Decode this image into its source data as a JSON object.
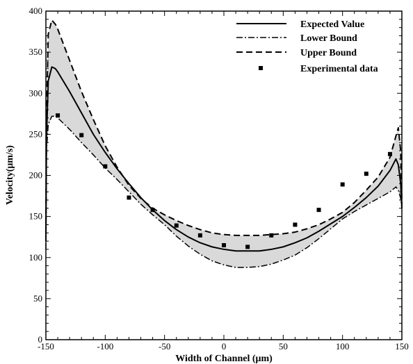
{
  "chart_data": {
    "type": "line",
    "title": "",
    "xlabel": "Width of Channel (μm)",
    "ylabel": "Velocity(μm/s)",
    "xlim": [
      -150,
      150
    ],
    "ylim": [
      0,
      400
    ],
    "xticks": [
      -150,
      -100,
      -50,
      0,
      50,
      100,
      150
    ],
    "yticks": [
      0,
      50,
      100,
      150,
      200,
      250,
      300,
      350,
      400
    ],
    "grid": false,
    "legend_position": "top-right",
    "band_color": "#d9d9d9",
    "series": [
      {
        "name": "Expected Value",
        "style": "solid",
        "x": [
          -150,
          -149.5,
          -148,
          -145,
          -142,
          -140,
          -130,
          -120,
          -110,
          -100,
          -90,
          -80,
          -70,
          -60,
          -50,
          -40,
          -30,
          -20,
          -10,
          0,
          10,
          20,
          30,
          40,
          50,
          60,
          70,
          80,
          90,
          100,
          110,
          120,
          130,
          140,
          145,
          147,
          149,
          150
        ],
        "y": [
          120,
          245,
          315,
          332,
          330,
          326,
          302,
          276,
          250,
          228,
          208,
          190,
          173,
          158,
          145,
          134,
          125,
          118,
          113,
          110,
          108,
          108,
          108,
          110,
          113,
          118,
          124,
          132,
          141,
          150,
          161,
          173,
          187,
          206,
          220,
          213,
          190,
          160
        ]
      },
      {
        "name": "Lower Bound",
        "style": "dashdot",
        "x": [
          -150,
          -149.5,
          -148,
          -145,
          -142,
          -140,
          -130,
          -120,
          -110,
          -100,
          -90,
          -80,
          -70,
          -60,
          -50,
          -40,
          -30,
          -20,
          -10,
          0,
          10,
          20,
          30,
          40,
          50,
          60,
          70,
          80,
          90,
          100,
          110,
          120,
          130,
          140,
          145,
          147,
          149,
          150
        ],
        "y": [
          110,
          230,
          262,
          272,
          272,
          270,
          256,
          240,
          225,
          209,
          195,
          180,
          165,
          152,
          140,
          126,
          114,
          104,
          96,
          91,
          88,
          88,
          89,
          92,
          97,
          103,
          112,
          123,
          135,
          147,
          156,
          164,
          172,
          180,
          186,
          182,
          172,
          160
        ]
      },
      {
        "name": "Upper Bound",
        "style": "dashed",
        "x": [
          -150,
          -149.5,
          -148,
          -145,
          -142,
          -140,
          -130,
          -120,
          -110,
          -100,
          -90,
          -80,
          -70,
          -60,
          -50,
          -40,
          -30,
          -20,
          -10,
          0,
          10,
          20,
          30,
          40,
          50,
          60,
          70,
          80,
          90,
          100,
          110,
          120,
          130,
          140,
          145,
          147,
          149,
          150
        ],
        "y": [
          130,
          265,
          372,
          389,
          384,
          378,
          340,
          302,
          268,
          236,
          210,
          188,
          172,
          160,
          152,
          145,
          139,
          134,
          130,
          128,
          127,
          127,
          127,
          128,
          129,
          131,
          135,
          140,
          147,
          155,
          167,
          182,
          198,
          222,
          248,
          258,
          230,
          165
        ]
      },
      {
        "name": "Experimental data",
        "style": "markers",
        "x": [
          -140,
          -120,
          -100,
          -80,
          -60,
          -40,
          -20,
          0,
          20,
          40,
          60,
          80,
          100,
          120,
          140
        ],
        "y": [
          273,
          249,
          211,
          173,
          158,
          139,
          127,
          115,
          113,
          127,
          140,
          158,
          189,
          202,
          226
        ]
      }
    ]
  }
}
